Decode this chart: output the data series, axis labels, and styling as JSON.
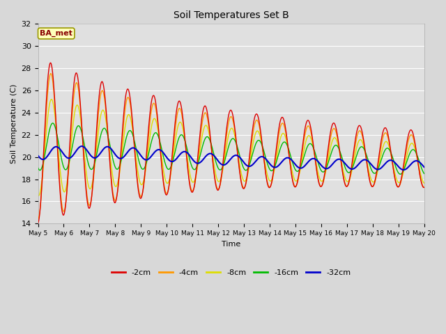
{
  "title": "Soil Temperatures Set B",
  "xlabel": "Time",
  "ylabel": "Soil Temperature (C)",
  "ylim": [
    14,
    32
  ],
  "yticks": [
    14,
    16,
    18,
    20,
    22,
    24,
    26,
    28,
    30,
    32
  ],
  "annotation": "BA_met",
  "colors": {
    "-2cm": "#dd0000",
    "-4cm": "#ff9900",
    "-8cm": "#dddd00",
    "-16cm": "#00bb00",
    "-32cm": "#0000cc"
  },
  "legend_labels": [
    "-2cm",
    "-4cm",
    "-8cm",
    "-16cm",
    "-32cm"
  ],
  "fig_bg_color": "#d8d8d8",
  "plot_bg_color": "#e0e0e0",
  "num_points": 720,
  "figwidth": 6.4,
  "figheight": 4.8,
  "dpi": 100
}
